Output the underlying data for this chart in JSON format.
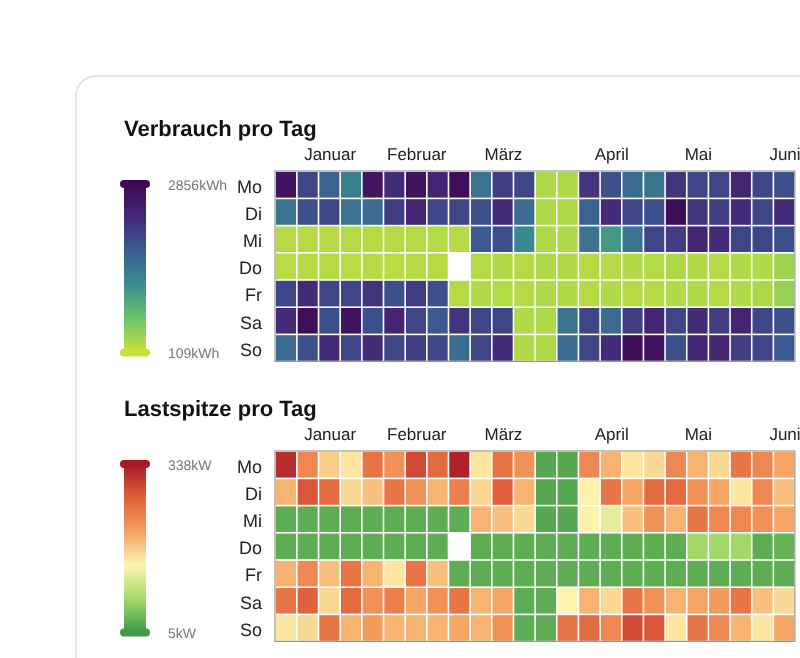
{
  "chart_data": [
    {
      "type": "heatmap",
      "title": "Verbrauch pro Tag",
      "categories": [
        null,
        null,
        "Januar",
        null,
        null,
        null,
        "Februar",
        null,
        null,
        null,
        "März",
        null,
        null,
        null,
        null,
        "April",
        null,
        null,
        null,
        "Mai",
        null,
        null,
        null,
        "Juni"
      ],
      "y_categories": [
        "Mo",
        "Di",
        "Mi",
        "Do",
        "Fr",
        "Sa",
        "So"
      ],
      "cells": [
        [
          2700,
          2000,
          1700,
          1400,
          2650,
          2300,
          2700,
          2400,
          2750,
          1500,
          2100,
          2000,
          250,
          250,
          2200,
          1900,
          1600,
          1500,
          2200,
          2000,
          2000,
          2400,
          2000,
          1900
        ],
        [
          1500,
          1900,
          2000,
          1500,
          1600,
          2100,
          2400,
          2000,
          2000,
          1900,
          2300,
          1600,
          250,
          250,
          1700,
          2300,
          2000,
          1900,
          2800,
          2200,
          2100,
          2300,
          2000,
          2300
        ],
        [
          220,
          230,
          220,
          230,
          220,
          230,
          220,
          230,
          230,
          1800,
          1900,
          1300,
          250,
          250,
          1500,
          1100,
          1500,
          2000,
          2100,
          2400,
          2300,
          2000,
          2000,
          1900
        ],
        [
          200,
          210,
          220,
          200,
          210,
          200,
          210,
          220,
          null,
          230,
          240,
          220,
          250,
          250,
          230,
          220,
          240,
          230,
          260,
          240,
          230,
          250,
          240,
          350
        ],
        [
          2000,
          2300,
          2000,
          2000,
          2200,
          1900,
          2100,
          1900,
          230,
          240,
          230,
          220,
          250,
          250,
          230,
          240,
          220,
          230,
          240,
          250,
          230,
          240,
          260,
          400
        ],
        [
          2300,
          2750,
          1900,
          2700,
          1900,
          2400,
          2000,
          1800,
          2200,
          2000,
          2000,
          240,
          250,
          1500,
          2000,
          1600,
          2100,
          2400,
          2000,
          2300,
          2100,
          2400,
          2000,
          1900
        ],
        [
          1600,
          1900,
          2300,
          2000,
          2300,
          2000,
          2100,
          2000,
          1600,
          2000,
          2300,
          240,
          250,
          1600,
          2000,
          2300,
          2800,
          2700,
          1900,
          2400,
          2400,
          2100,
          2000,
          1800
        ]
      ],
      "colors": [
        "#c8e03c",
        "#6cc46a",
        "#3a8f8c",
        "#3b5d92",
        "#442a78",
        "#3d0a52"
      ],
      "clim": [
        109,
        2856
      ],
      "cticks": [
        {
          "value": 2856,
          "label": "2856kWh"
        },
        {
          "value": 109,
          "label": "109kWh"
        }
      ]
    },
    {
      "type": "heatmap",
      "title": "Lastspitze pro Tag",
      "categories": [
        null,
        null,
        "Januar",
        null,
        null,
        null,
        "Februar",
        null,
        null,
        null,
        "März",
        null,
        null,
        null,
        null,
        "April",
        null,
        null,
        null,
        "Mai",
        null,
        null,
        null,
        "Juni"
      ],
      "y_categories": [
        "Mo",
        "Di",
        "Mi",
        "Do",
        "Fr",
        "Sa",
        "So"
      ],
      "cells": [
        [
          320,
          230,
          170,
          150,
          250,
          220,
          290,
          260,
          330,
          150,
          250,
          220,
          20,
          20,
          230,
          190,
          150,
          160,
          230,
          190,
          160,
          250,
          230,
          200
        ],
        [
          190,
          280,
          260,
          160,
          180,
          250,
          220,
          190,
          240,
          160,
          270,
          190,
          20,
          20,
          140,
          250,
          200,
          260,
          260,
          220,
          200,
          150,
          230,
          180
        ],
        [
          25,
          25,
          25,
          25,
          25,
          25,
          25,
          25,
          25,
          190,
          180,
          160,
          20,
          20,
          140,
          120,
          180,
          220,
          190,
          250,
          230,
          230,
          220,
          200
        ],
        [
          25,
          25,
          25,
          25,
          25,
          25,
          25,
          25,
          null,
          25,
          25,
          25,
          25,
          25,
          25,
          25,
          25,
          25,
          25,
          70,
          70,
          70,
          25,
          30
        ],
        [
          190,
          230,
          180,
          250,
          190,
          150,
          250,
          180,
          25,
          25,
          25,
          25,
          25,
          25,
          25,
          25,
          25,
          25,
          25,
          25,
          25,
          25,
          25,
          25
        ],
        [
          250,
          270,
          160,
          260,
          220,
          240,
          200,
          220,
          250,
          190,
          200,
          25,
          25,
          140,
          190,
          160,
          250,
          220,
          190,
          200,
          210,
          250,
          180,
          160
        ],
        [
          150,
          160,
          250,
          190,
          210,
          190,
          190,
          190,
          200,
          190,
          220,
          25,
          25,
          250,
          260,
          230,
          290,
          280,
          150,
          250,
          230,
          190,
          150,
          200
        ]
      ],
      "colors": [
        "#3f9a4a",
        "#a6d96a",
        "#fdf5b0",
        "#f5a060",
        "#e0603a",
        "#a8192a"
      ],
      "clim": [
        5,
        338
      ],
      "cticks": [
        {
          "value": 338,
          "label": "338kW"
        },
        {
          "value": 5,
          "label": "5kW"
        }
      ]
    }
  ]
}
